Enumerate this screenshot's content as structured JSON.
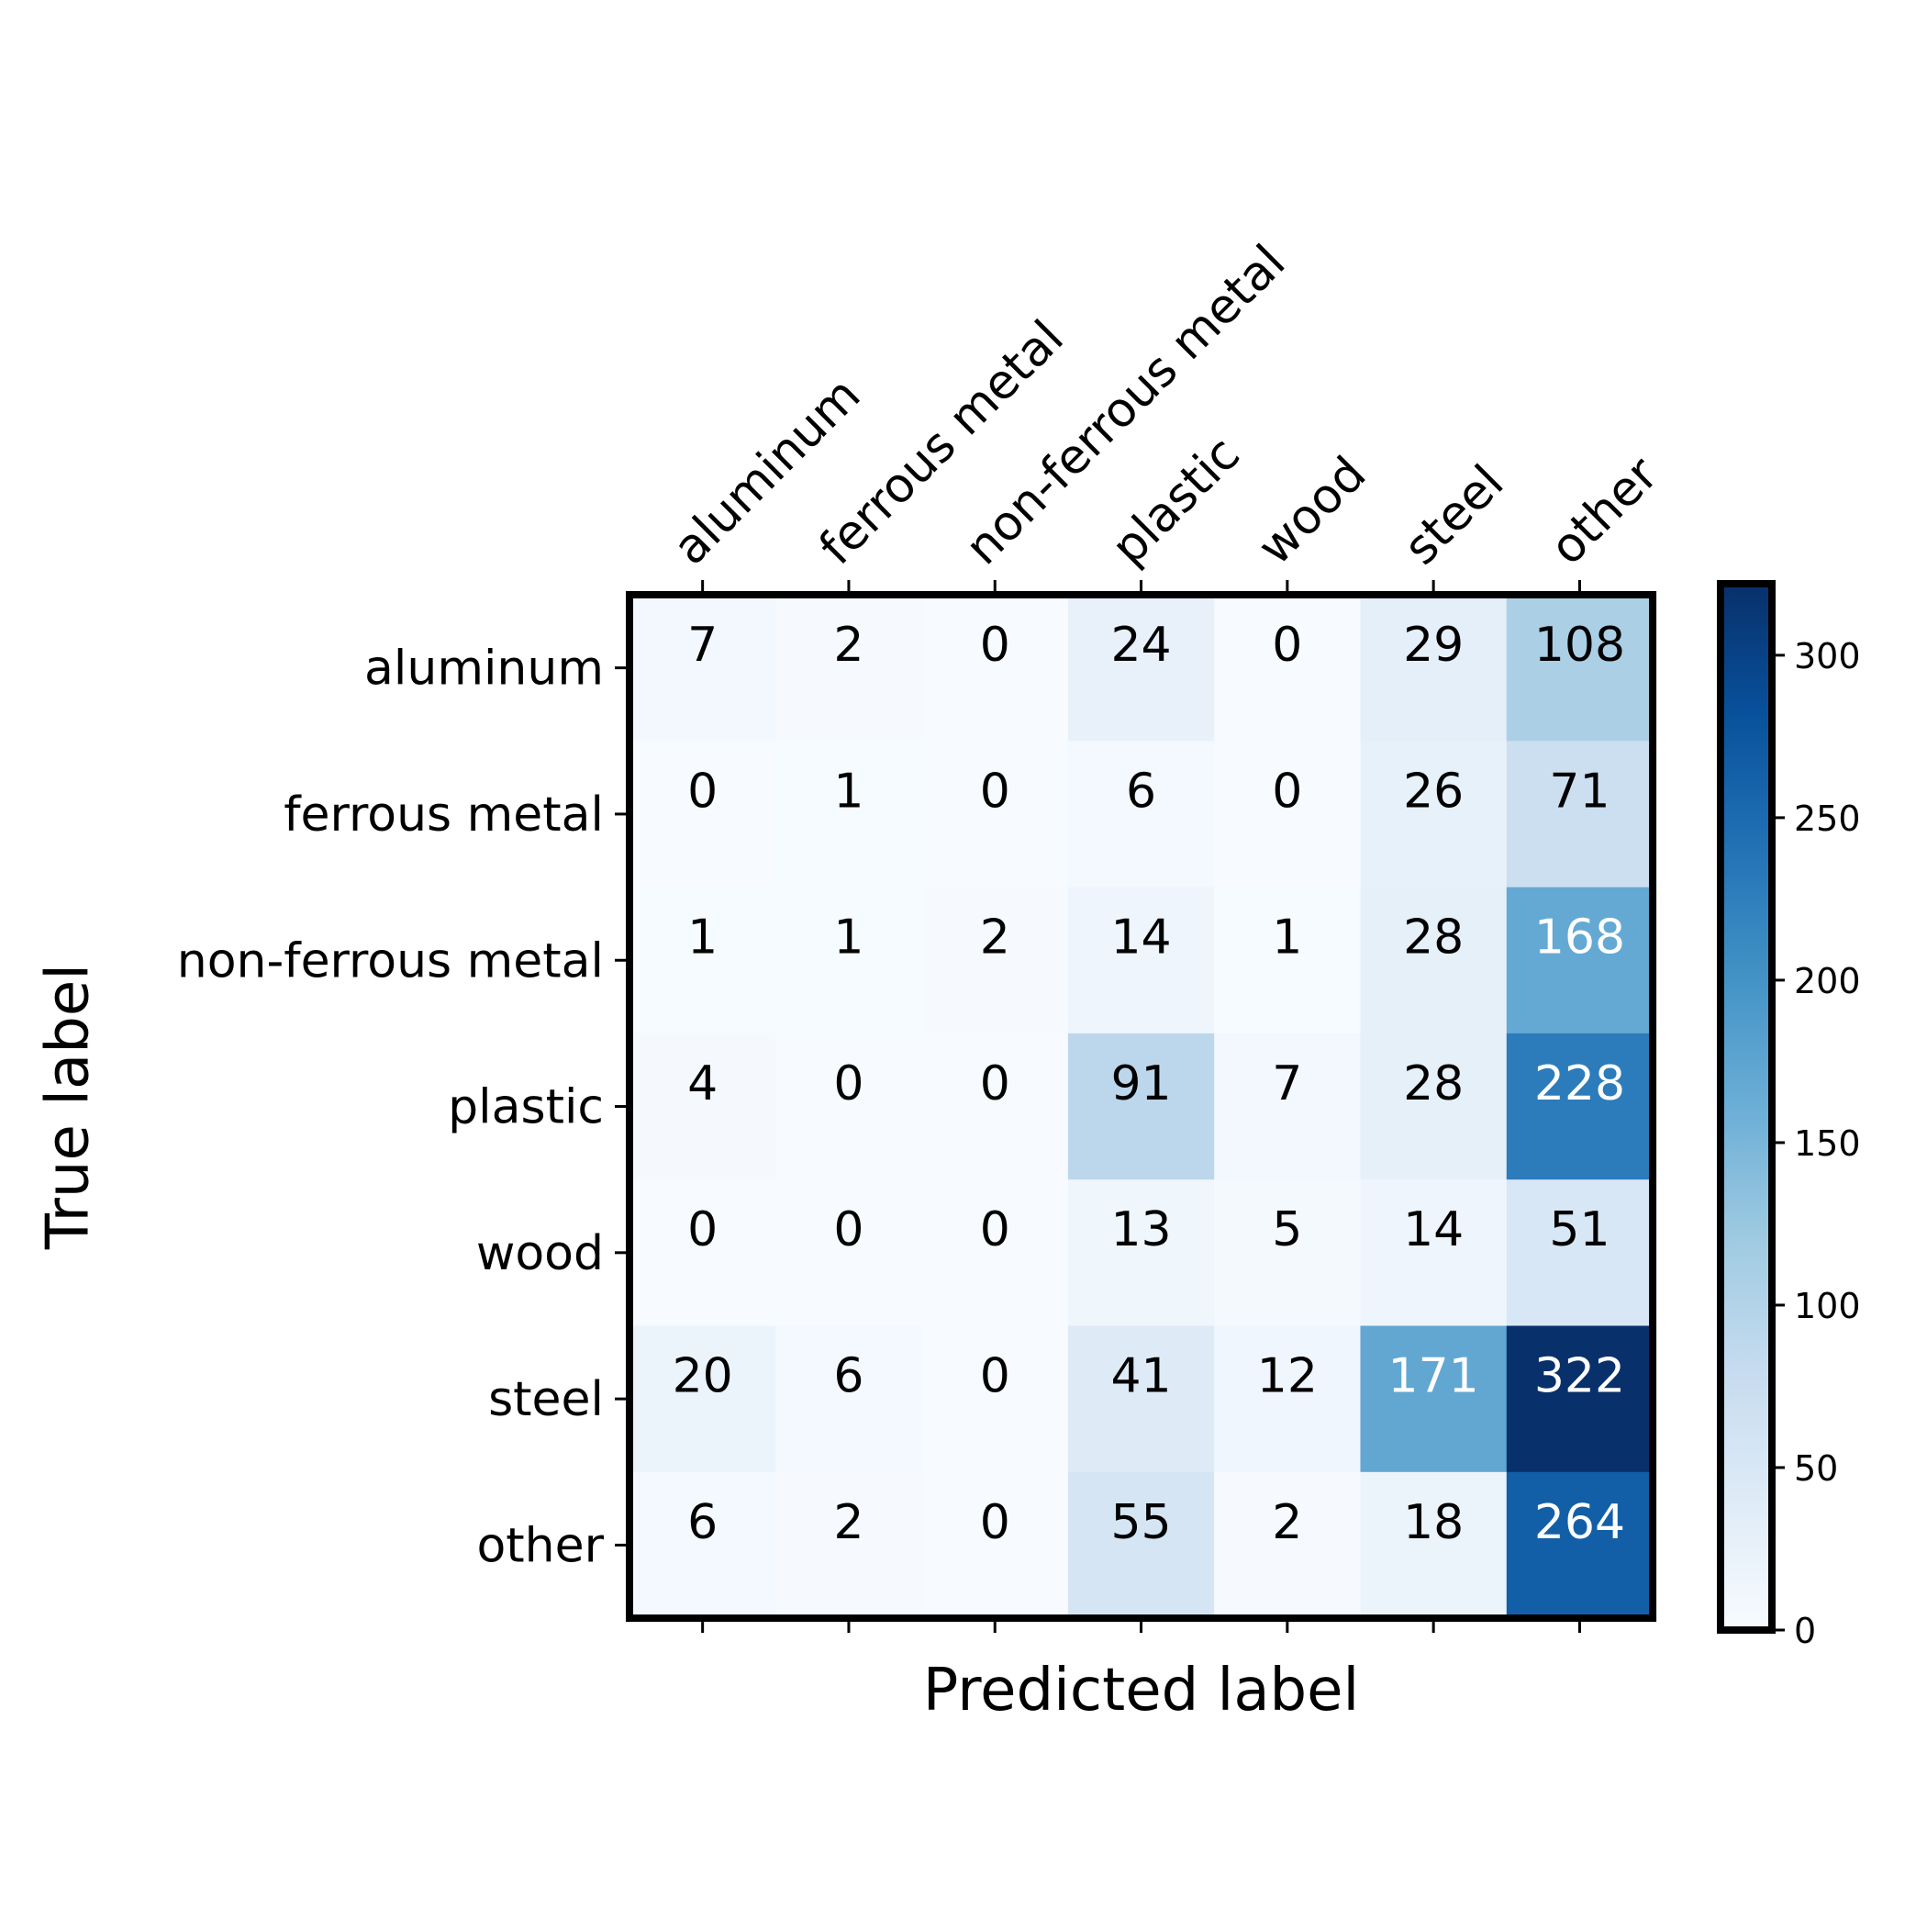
{
  "chart_data": {
    "type": "heatmap",
    "title": "",
    "xlabel": "Predicted label",
    "ylabel": "True label",
    "x_categories": [
      "aluminum",
      "ferrous metal",
      "non-ferrous metal",
      "plastic",
      "wood",
      "steel",
      "other"
    ],
    "y_categories": [
      "aluminum",
      "ferrous metal",
      "non-ferrous metal",
      "plastic",
      "wood",
      "steel",
      "other"
    ],
    "values": [
      [
        7,
        2,
        0,
        24,
        0,
        29,
        108
      ],
      [
        0,
        1,
        0,
        6,
        0,
        26,
        71
      ],
      [
        1,
        1,
        2,
        14,
        1,
        28,
        168
      ],
      [
        4,
        0,
        0,
        91,
        7,
        28,
        228
      ],
      [
        0,
        0,
        0,
        13,
        5,
        14,
        51
      ],
      [
        20,
        6,
        0,
        41,
        12,
        171,
        322
      ],
      [
        6,
        2,
        0,
        55,
        2,
        18,
        264
      ]
    ],
    "colormap": "Blues",
    "color_range": [
      0,
      322
    ],
    "colorbar": {
      "ticks": [
        0,
        50,
        100,
        150,
        200,
        250,
        300
      ]
    },
    "x_tick_position": "top",
    "grid": false
  }
}
